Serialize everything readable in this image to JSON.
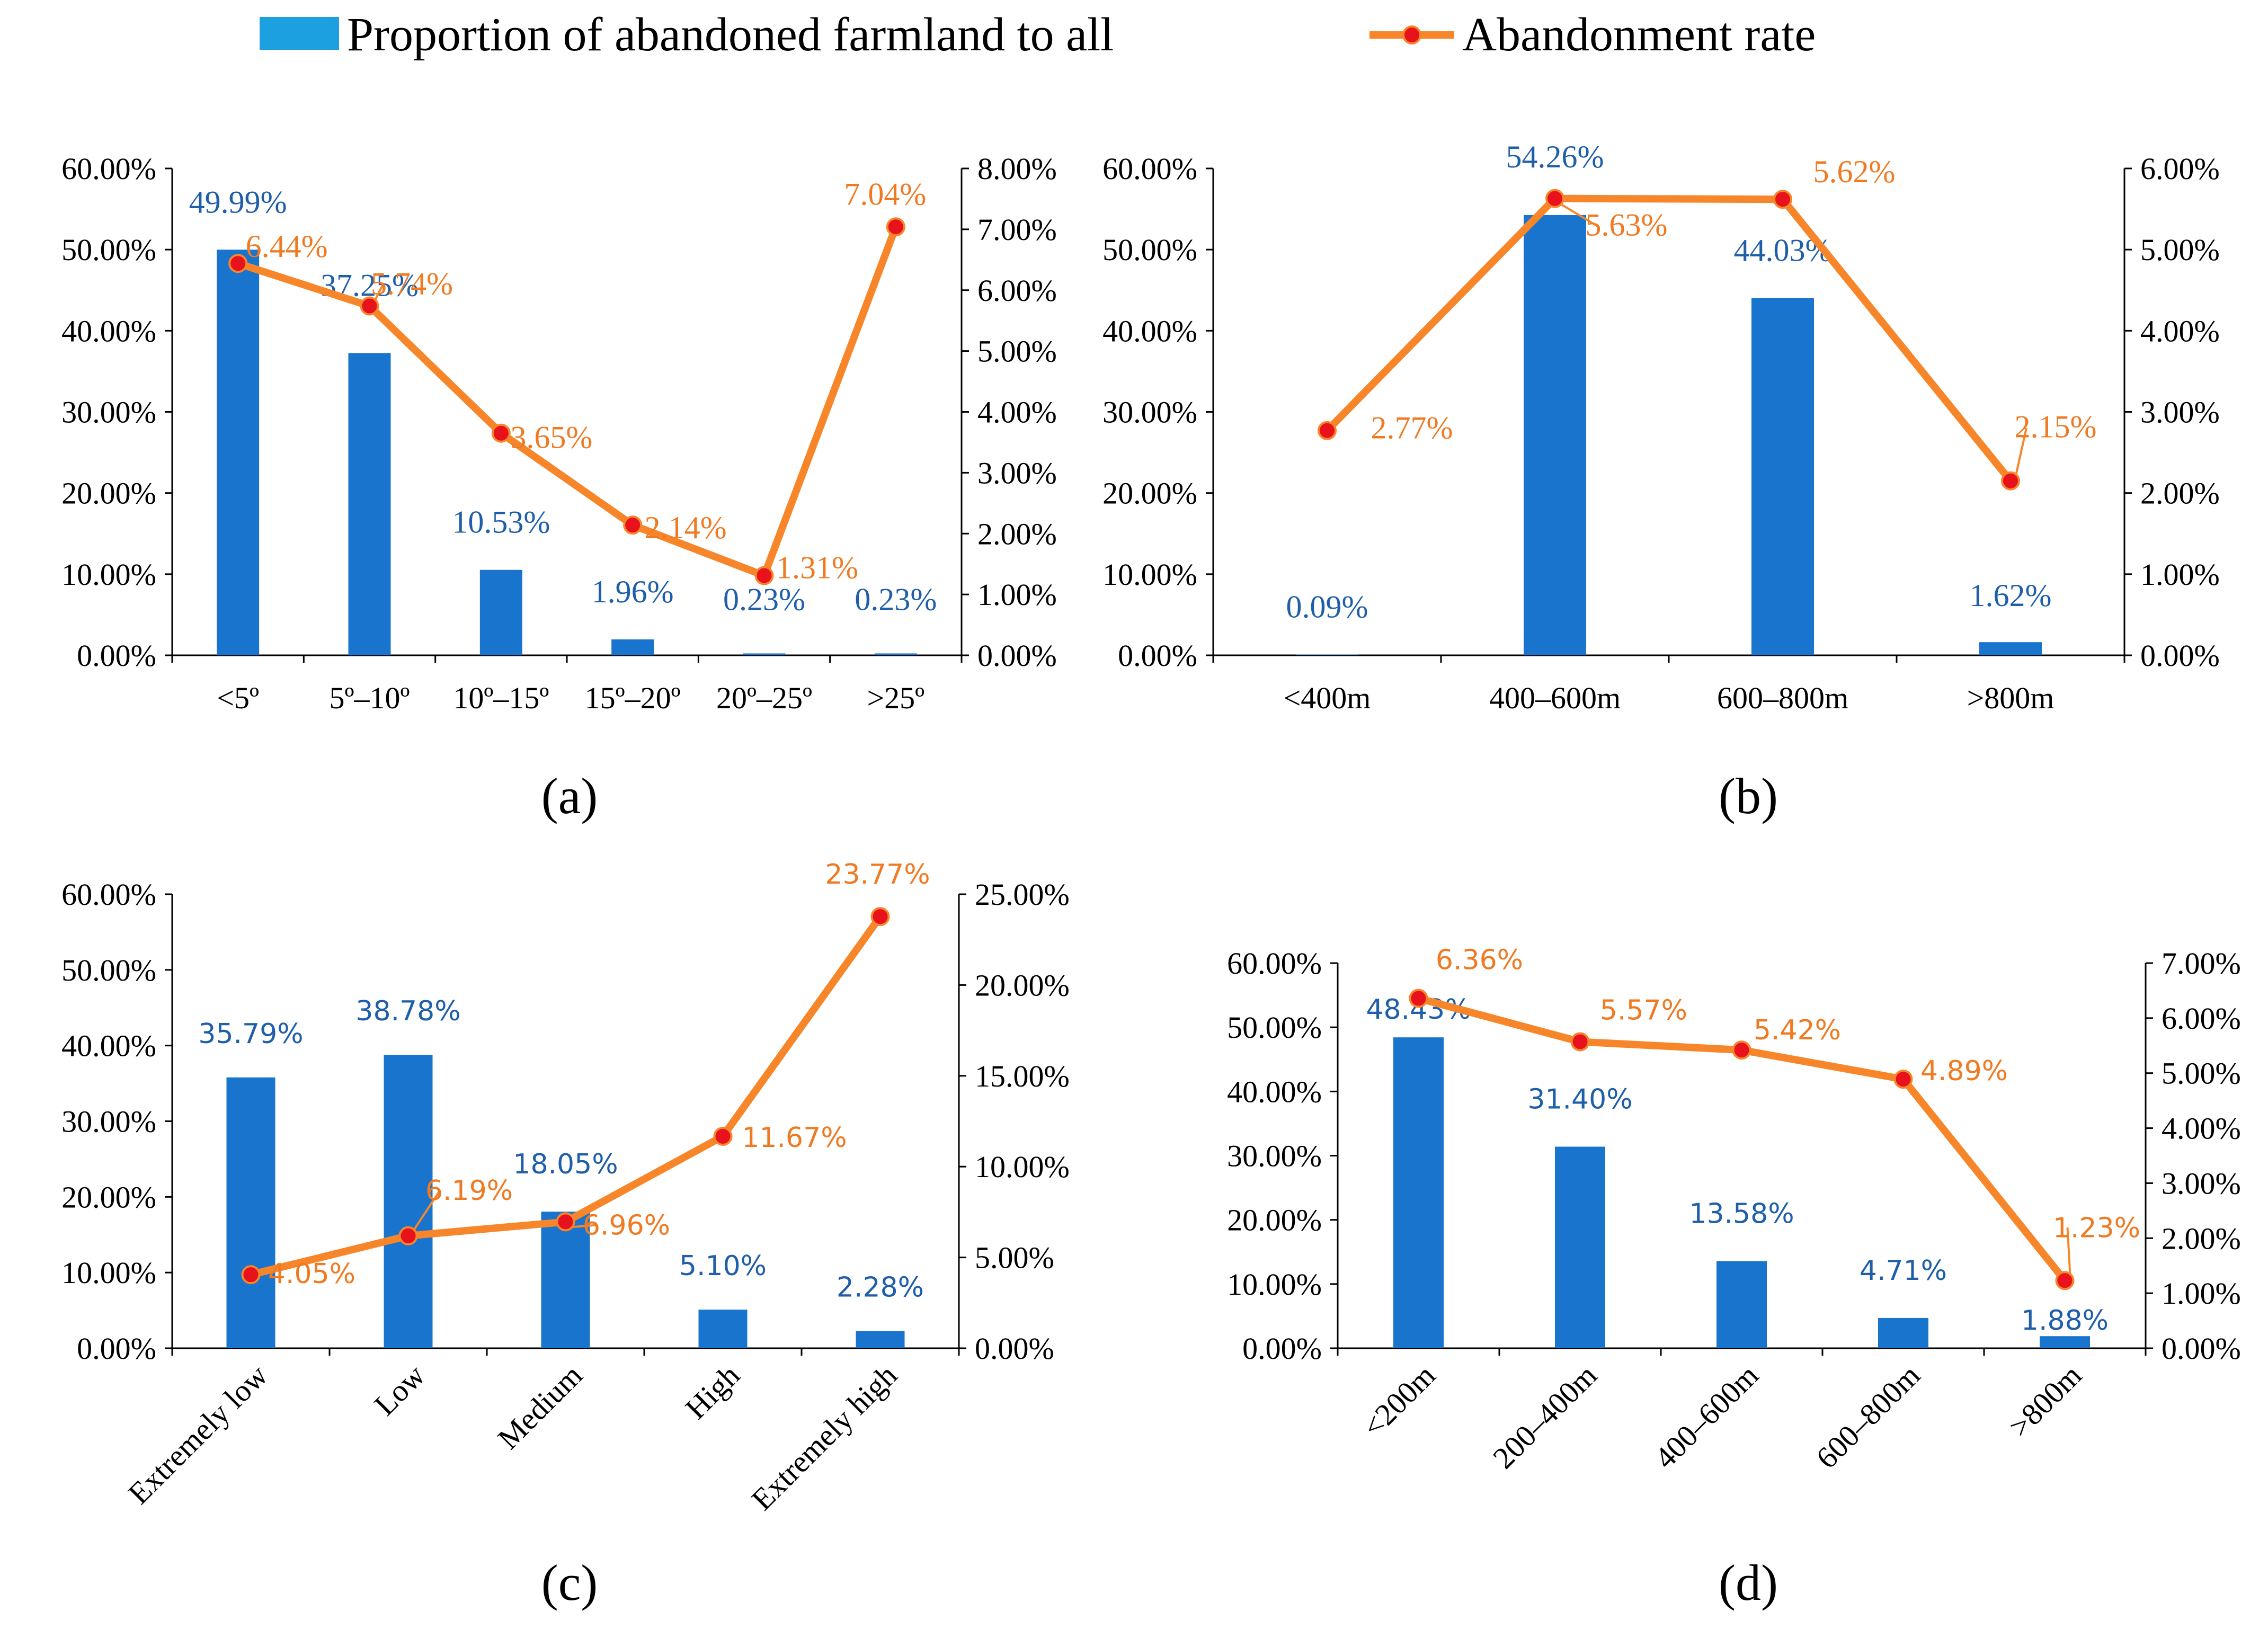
{
  "legend": {
    "bar_label": "Proportion of abandoned farmland to all",
    "line_label": "Abandonment rate"
  },
  "colors": {
    "bar": "#1874CD",
    "bar_legend": "#1CA0E0",
    "line": "#F7862A",
    "marker": "#E8121C",
    "bar_label_text": "#1F5FAA",
    "line_label_text": "#F07A22"
  },
  "chart_data": [
    {
      "panel": "(a)",
      "type": "bar+line",
      "categories": [
        "<5º",
        "5º–10º",
        "10º–15º",
        "15º–20º",
        "20º–25º",
        ">25º"
      ],
      "series": [
        {
          "name": "Proportion of abandoned farmland to all",
          "type": "bar",
          "axis": "left",
          "values": [
            49.99,
            37.25,
            10.53,
            1.96,
            0.23,
            0.23
          ],
          "labels": [
            "49.99%",
            "37.25%",
            "10.53%",
            "1.96%",
            "0.23%",
            "0.23%"
          ]
        },
        {
          "name": "Abandonment rate",
          "type": "line",
          "axis": "right",
          "values": [
            6.44,
            5.74,
            3.65,
            2.14,
            1.31,
            7.04
          ],
          "labels": [
            "6.44%",
            "5.74%",
            "3.65%",
            "2.14%",
            "1.31%",
            "7.04%"
          ]
        }
      ],
      "y_left": {
        "min": 0,
        "max": 60,
        "step": 10,
        "ticks": [
          "0.00%",
          "10.00%",
          "20.00%",
          "30.00%",
          "40.00%",
          "50.00%",
          "60.00%"
        ]
      },
      "y_right": {
        "min": 0,
        "max": 8,
        "step": 1,
        "ticks": [
          "0.00%",
          "1.00%",
          "2.00%",
          "3.00%",
          "4.00%",
          "5.00%",
          "6.00%",
          "7.00%",
          "8.00%"
        ]
      },
      "label_font": "serif",
      "rotated_categories": false
    },
    {
      "panel": "(b)",
      "type": "bar+line",
      "categories": [
        "<400m",
        "400–600m",
        "600–800m",
        ">800m"
      ],
      "series": [
        {
          "name": "Proportion of abandoned farmland to all",
          "type": "bar",
          "axis": "left",
          "values": [
            0.09,
            54.26,
            44.03,
            1.62
          ],
          "labels": [
            "0.09%",
            "54.26%",
            "44.03%",
            "1.62%"
          ]
        },
        {
          "name": "Abandonment rate",
          "type": "line",
          "axis": "right",
          "values": [
            2.77,
            5.63,
            5.62,
            2.15
          ],
          "labels": [
            "2.77%",
            "5.63%",
            "5.62%",
            "2.15%"
          ]
        }
      ],
      "y_left": {
        "min": 0,
        "max": 60,
        "step": 10,
        "ticks": [
          "0.00%",
          "10.00%",
          "20.00%",
          "30.00%",
          "40.00%",
          "50.00%",
          "60.00%"
        ]
      },
      "y_right": {
        "min": 0,
        "max": 6,
        "step": 1,
        "ticks": [
          "0.00%",
          "1.00%",
          "2.00%",
          "3.00%",
          "4.00%",
          "5.00%",
          "6.00%"
        ]
      },
      "label_font": "serif",
      "rotated_categories": false
    },
    {
      "panel": "(c)",
      "type": "bar+line",
      "categories": [
        "Extremely low",
        "Low",
        "Medium",
        "High",
        "Extremely high"
      ],
      "series": [
        {
          "name": "Proportion of abandoned farmland to all",
          "type": "bar",
          "axis": "left",
          "values": [
            35.79,
            38.78,
            18.05,
            5.1,
            2.28
          ],
          "labels": [
            "35.79%",
            "38.78%",
            "18.05%",
            "5.10%",
            "2.28%"
          ]
        },
        {
          "name": "Abandonment rate",
          "type": "line",
          "axis": "right",
          "values": [
            4.05,
            6.19,
            6.96,
            11.67,
            23.77
          ],
          "labels": [
            "4.05%",
            "6.19%",
            "6.96%",
            "11.67%",
            "23.77%"
          ]
        }
      ],
      "y_left": {
        "min": 0,
        "max": 60,
        "step": 10,
        "ticks": [
          "0.00%",
          "10.00%",
          "20.00%",
          "30.00%",
          "40.00%",
          "50.00%",
          "60.00%"
        ]
      },
      "y_right": {
        "min": 0,
        "max": 25,
        "step": 5,
        "ticks": [
          "0.00%",
          "5.00%",
          "10.00%",
          "15.00%",
          "20.00%",
          "25.00%"
        ]
      },
      "label_font": "sans",
      "rotated_categories": true
    },
    {
      "panel": "(d)",
      "type": "bar+line",
      "categories": [
        "<200m",
        "200–400m",
        "400–600m",
        "600–800m",
        ">800m"
      ],
      "series": [
        {
          "name": "Proportion of abandoned farmland to all",
          "type": "bar",
          "axis": "left",
          "values": [
            48.43,
            31.4,
            13.58,
            4.71,
            1.88
          ],
          "labels": [
            "48.43%",
            "31.40%",
            "13.58%",
            "4.71%",
            "1.88%"
          ]
        },
        {
          "name": "Abandonment rate",
          "type": "line",
          "axis": "right",
          "values": [
            6.36,
            5.57,
            5.42,
            4.89,
            1.23
          ],
          "labels": [
            "6.36%",
            "5.57%",
            "5.42%",
            "4.89%",
            "1.23%"
          ]
        }
      ],
      "y_left": {
        "min": 0,
        "max": 60,
        "step": 10,
        "ticks": [
          "0.00%",
          "10.00%",
          "20.00%",
          "30.00%",
          "40.00%",
          "50.00%",
          "60.00%"
        ]
      },
      "y_right": {
        "min": 0,
        "max": 7,
        "step": 1,
        "ticks": [
          "0.00%",
          "1.00%",
          "2.00%",
          "3.00%",
          "4.00%",
          "5.00%",
          "6.00%",
          "7.00%"
        ]
      },
      "label_font": "sans",
      "rotated_categories": true
    }
  ]
}
